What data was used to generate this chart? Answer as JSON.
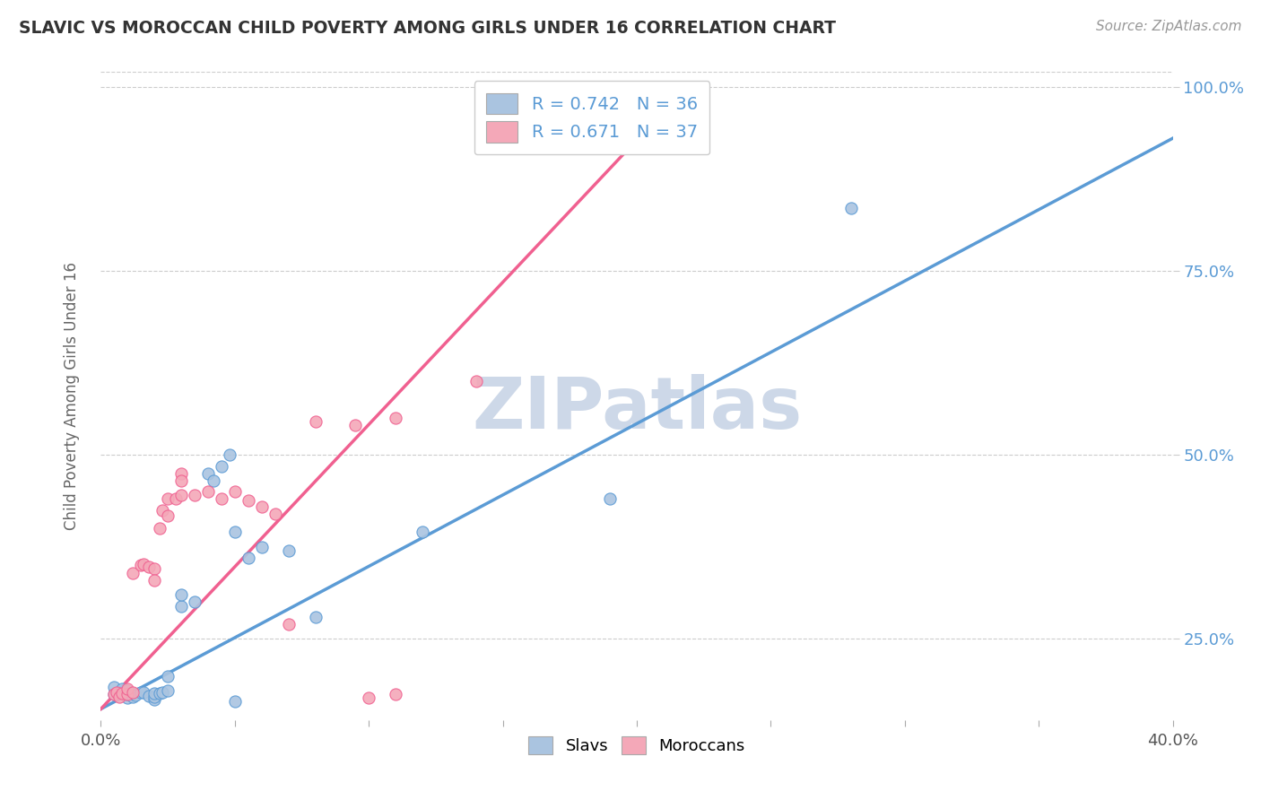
{
  "title": "SLAVIC VS MOROCCAN CHILD POVERTY AMONG GIRLS UNDER 16 CORRELATION CHART",
  "source": "Source: ZipAtlas.com",
  "ylabel": "Child Poverty Among Girls Under 16",
  "xlim": [
    0.0,
    0.4
  ],
  "ylim": [
    0.14,
    1.02
  ],
  "xticks": [
    0.0,
    0.05,
    0.1,
    0.15,
    0.2,
    0.25,
    0.3,
    0.35,
    0.4
  ],
  "xtick_labels": [
    "0.0%",
    "",
    "",
    "",
    "",
    "",
    "",
    "",
    "40.0%"
  ],
  "yticks": [
    0.25,
    0.5,
    0.75,
    1.0
  ],
  "ytick_labels": [
    "25.0%",
    "50.0%",
    "75.0%",
    "100.0%"
  ],
  "slavs_R": 0.742,
  "slavs_N": 36,
  "moroccans_R": 0.671,
  "moroccans_N": 37,
  "slavs_color": "#aac4e0",
  "moroccans_color": "#f4a8b8",
  "slavs_line_color": "#5b9bd5",
  "moroccans_line_color": "#f06090",
  "slavs_scatter": [
    [
      0.005,
      0.175
    ],
    [
      0.005,
      0.185
    ],
    [
      0.008,
      0.178
    ],
    [
      0.008,
      0.182
    ],
    [
      0.01,
      0.17
    ],
    [
      0.01,
      0.175
    ],
    [
      0.01,
      0.18
    ],
    [
      0.012,
      0.176
    ],
    [
      0.012,
      0.172
    ],
    [
      0.013,
      0.174
    ],
    [
      0.015,
      0.178
    ],
    [
      0.016,
      0.177
    ],
    [
      0.018,
      0.173
    ],
    [
      0.02,
      0.168
    ],
    [
      0.02,
      0.172
    ],
    [
      0.02,
      0.176
    ],
    [
      0.022,
      0.176
    ],
    [
      0.023,
      0.178
    ],
    [
      0.025,
      0.2
    ],
    [
      0.025,
      0.18
    ],
    [
      0.03,
      0.295
    ],
    [
      0.03,
      0.31
    ],
    [
      0.035,
      0.3
    ],
    [
      0.04,
      0.475
    ],
    [
      0.042,
      0.465
    ],
    [
      0.045,
      0.485
    ],
    [
      0.048,
      0.5
    ],
    [
      0.05,
      0.395
    ],
    [
      0.055,
      0.36
    ],
    [
      0.06,
      0.375
    ],
    [
      0.07,
      0.37
    ],
    [
      0.08,
      0.28
    ],
    [
      0.12,
      0.395
    ],
    [
      0.19,
      0.44
    ],
    [
      0.28,
      0.835
    ],
    [
      0.05,
      0.165
    ]
  ],
  "moroccans_scatter": [
    [
      0.005,
      0.175
    ],
    [
      0.006,
      0.178
    ],
    [
      0.007,
      0.172
    ],
    [
      0.008,
      0.176
    ],
    [
      0.01,
      0.175
    ],
    [
      0.01,
      0.182
    ],
    [
      0.012,
      0.178
    ],
    [
      0.012,
      0.34
    ],
    [
      0.015,
      0.35
    ],
    [
      0.016,
      0.352
    ],
    [
      0.018,
      0.348
    ],
    [
      0.02,
      0.345
    ],
    [
      0.02,
      0.33
    ],
    [
      0.022,
      0.4
    ],
    [
      0.023,
      0.425
    ],
    [
      0.025,
      0.418
    ],
    [
      0.025,
      0.44
    ],
    [
      0.028,
      0.44
    ],
    [
      0.03,
      0.475
    ],
    [
      0.03,
      0.465
    ],
    [
      0.03,
      0.445
    ],
    [
      0.035,
      0.445
    ],
    [
      0.04,
      0.45
    ],
    [
      0.045,
      0.44
    ],
    [
      0.05,
      0.45
    ],
    [
      0.055,
      0.438
    ],
    [
      0.06,
      0.43
    ],
    [
      0.065,
      0.42
    ],
    [
      0.07,
      0.27
    ],
    [
      0.1,
      0.17
    ],
    [
      0.11,
      0.175
    ],
    [
      0.14,
      0.6
    ],
    [
      0.19,
      0.975
    ],
    [
      0.22,
      1.0
    ],
    [
      0.08,
      0.545
    ],
    [
      0.095,
      0.54
    ],
    [
      0.11,
      0.55
    ]
  ],
  "slavs_line_x": [
    0.0,
    0.4
  ],
  "slavs_line_y": [
    0.155,
    0.93
  ],
  "moroccans_line_x": [
    0.0,
    0.22
  ],
  "moroccans_line_y": [
    0.155,
    1.005
  ],
  "background_color": "#ffffff",
  "watermark_text": "ZIPatlas",
  "watermark_color": "#cdd8e8",
  "legend_color": "#5b9bd5"
}
